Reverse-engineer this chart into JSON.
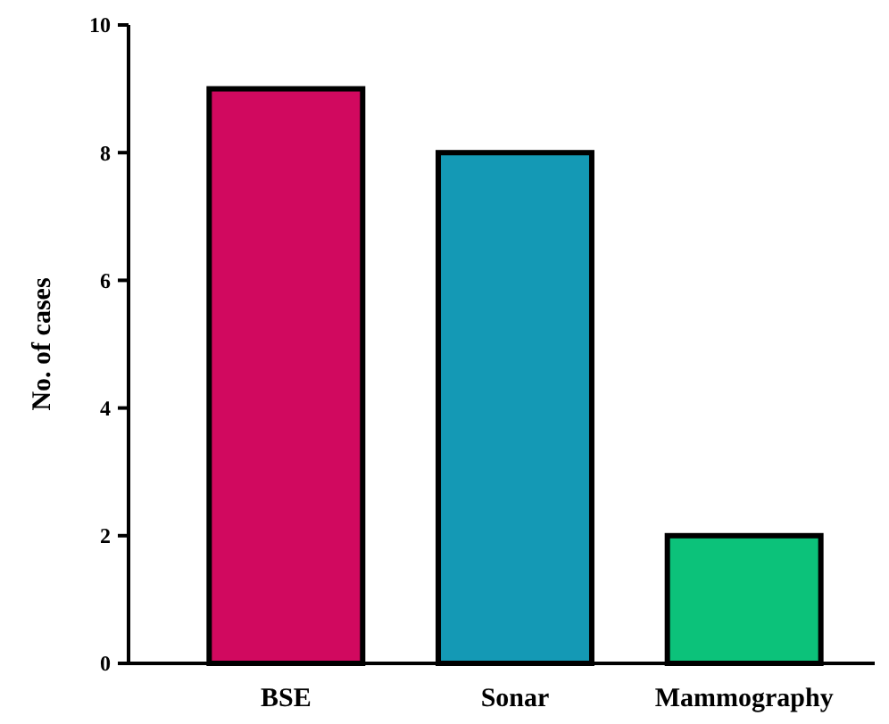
{
  "chart_data": {
    "type": "bar",
    "ylabel": "No. of cases",
    "categories": [
      "BSE",
      "Sonar",
      "Mammography"
    ],
    "values": [
      9,
      8,
      2
    ],
    "colors": [
      "#d1095f",
      "#1499b5",
      "#0cc27a"
    ],
    "ylim": [
      0,
      10
    ],
    "yticks": [
      0,
      2,
      4,
      6,
      8,
      10
    ],
    "grid": false
  }
}
